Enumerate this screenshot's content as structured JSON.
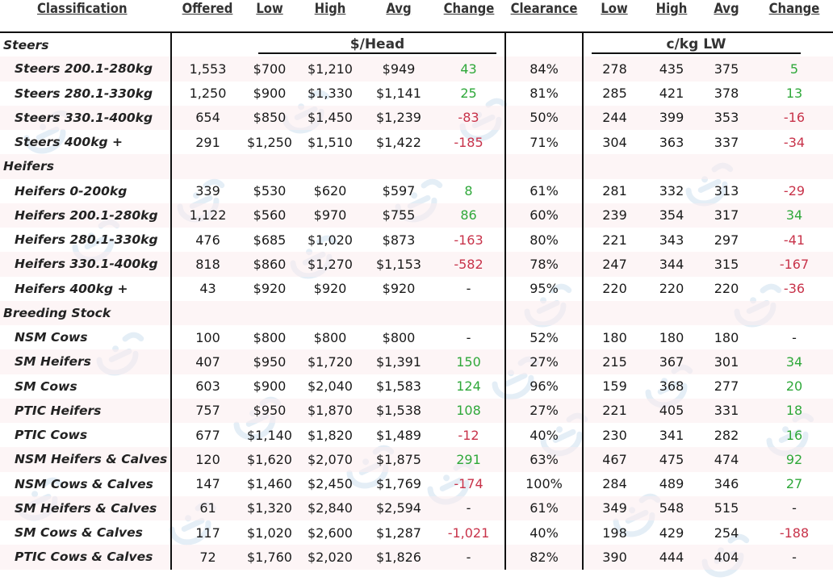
{
  "columns": [
    "Classification",
    "Offered",
    "Low",
    "High",
    "Avg",
    "Change",
    "Clearance",
    "Low",
    "High",
    "Avg",
    "Change"
  ],
  "units": {
    "head": "$/Head",
    "kg": "c/kg LW"
  },
  "rows": [
    {
      "type": "section",
      "label": "Steers"
    },
    {
      "type": "data",
      "label": "Steers 200.1-280kg",
      "offered": "1,553",
      "low": "$700",
      "high": "$1,210",
      "avg": "$949",
      "change": "43",
      "change_sign": "pos",
      "clearance": "84%",
      "kg_low": "278",
      "kg_high": "435",
      "kg_avg": "375",
      "kg_change": "5",
      "kg_change_sign": "pos"
    },
    {
      "type": "data",
      "label": "Steers 280.1-330kg",
      "offered": "1,250",
      "low": "$900",
      "high": "$1,330",
      "avg": "$1,141",
      "change": "25",
      "change_sign": "pos",
      "clearance": "81%",
      "kg_low": "285",
      "kg_high": "421",
      "kg_avg": "378",
      "kg_change": "13",
      "kg_change_sign": "pos"
    },
    {
      "type": "data",
      "label": "Steers 330.1-400kg",
      "offered": "654",
      "low": "$850",
      "high": "$1,450",
      "avg": "$1,239",
      "change": "-83",
      "change_sign": "neg",
      "clearance": "50%",
      "kg_low": "244",
      "kg_high": "399",
      "kg_avg": "353",
      "kg_change": "-16",
      "kg_change_sign": "neg"
    },
    {
      "type": "data",
      "label": "Steers 400kg +",
      "offered": "291",
      "low": "$1,250",
      "high": "$1,510",
      "avg": "$1,422",
      "change": "-185",
      "change_sign": "neg",
      "clearance": "71%",
      "kg_low": "304",
      "kg_high": "363",
      "kg_avg": "337",
      "kg_change": "-34",
      "kg_change_sign": "neg"
    },
    {
      "type": "section",
      "label": "Heifers"
    },
    {
      "type": "data",
      "label": "Heifers 0-200kg",
      "offered": "339",
      "low": "$530",
      "high": "$620",
      "avg": "$597",
      "change": "8",
      "change_sign": "pos",
      "clearance": "61%",
      "kg_low": "281",
      "kg_high": "332",
      "kg_avg": "313",
      "kg_change": "-29",
      "kg_change_sign": "neg"
    },
    {
      "type": "data",
      "label": "Heifers 200.1-280kg",
      "offered": "1,122",
      "low": "$560",
      "high": "$970",
      "avg": "$755",
      "change": "86",
      "change_sign": "pos",
      "clearance": "60%",
      "kg_low": "239",
      "kg_high": "354",
      "kg_avg": "317",
      "kg_change": "34",
      "kg_change_sign": "pos"
    },
    {
      "type": "data",
      "label": "Heifers 280.1-330kg",
      "offered": "476",
      "low": "$685",
      "high": "$1,020",
      "avg": "$873",
      "change": "-163",
      "change_sign": "neg",
      "clearance": "80%",
      "kg_low": "221",
      "kg_high": "343",
      "kg_avg": "297",
      "kg_change": "-41",
      "kg_change_sign": "neg"
    },
    {
      "type": "data",
      "label": "Heifers 330.1-400kg",
      "offered": "818",
      "low": "$860",
      "high": "$1,270",
      "avg": "$1,153",
      "change": "-582",
      "change_sign": "neg",
      "clearance": "78%",
      "kg_low": "247",
      "kg_high": "344",
      "kg_avg": "315",
      "kg_change": "-167",
      "kg_change_sign": "neg"
    },
    {
      "type": "data",
      "label": "Heifers 400kg +",
      "offered": "43",
      "low": "$920",
      "high": "$920",
      "avg": "$920",
      "change": "-",
      "change_sign": "none",
      "clearance": "95%",
      "kg_low": "220",
      "kg_high": "220",
      "kg_avg": "220",
      "kg_change": "-36",
      "kg_change_sign": "neg"
    },
    {
      "type": "section",
      "label": "Breeding Stock"
    },
    {
      "type": "data",
      "label": "NSM Cows",
      "offered": "100",
      "low": "$800",
      "high": "$800",
      "avg": "$800",
      "change": "-",
      "change_sign": "none",
      "clearance": "52%",
      "kg_low": "180",
      "kg_high": "180",
      "kg_avg": "180",
      "kg_change": "-",
      "kg_change_sign": "none"
    },
    {
      "type": "data",
      "label": "SM Heifers",
      "offered": "407",
      "low": "$950",
      "high": "$1,720",
      "avg": "$1,391",
      "change": "150",
      "change_sign": "pos",
      "clearance": "27%",
      "kg_low": "215",
      "kg_high": "367",
      "kg_avg": "301",
      "kg_change": "34",
      "kg_change_sign": "pos"
    },
    {
      "type": "data",
      "label": "SM Cows",
      "offered": "603",
      "low": "$900",
      "high": "$2,040",
      "avg": "$1,583",
      "change": "124",
      "change_sign": "pos",
      "clearance": "96%",
      "kg_low": "159",
      "kg_high": "368",
      "kg_avg": "277",
      "kg_change": "20",
      "kg_change_sign": "pos"
    },
    {
      "type": "data",
      "label": "PTIC Heifers",
      "offered": "757",
      "low": "$950",
      "high": "$1,870",
      "avg": "$1,538",
      "change": "108",
      "change_sign": "pos",
      "clearance": "27%",
      "kg_low": "221",
      "kg_high": "405",
      "kg_avg": "331",
      "kg_change": "18",
      "kg_change_sign": "pos"
    },
    {
      "type": "data",
      "label": "PTIC Cows",
      "offered": "677",
      "low": "$1,140",
      "high": "$1,820",
      "avg": "$1,489",
      "change": "-12",
      "change_sign": "neg",
      "clearance": "40%",
      "kg_low": "230",
      "kg_high": "341",
      "kg_avg": "282",
      "kg_change": "16",
      "kg_change_sign": "pos"
    },
    {
      "type": "data",
      "label": "NSM Heifers & Calves",
      "offered": "120",
      "low": "$1,620",
      "high": "$2,070",
      "avg": "$1,875",
      "change": "291",
      "change_sign": "pos",
      "clearance": "63%",
      "kg_low": "467",
      "kg_high": "475",
      "kg_avg": "474",
      "kg_change": "92",
      "kg_change_sign": "pos"
    },
    {
      "type": "data",
      "label": "NSM Cows & Calves",
      "offered": "147",
      "low": "$1,460",
      "high": "$2,450",
      "avg": "$1,769",
      "change": "-174",
      "change_sign": "neg",
      "clearance": "100%",
      "kg_low": "284",
      "kg_high": "489",
      "kg_avg": "346",
      "kg_change": "27",
      "kg_change_sign": "pos"
    },
    {
      "type": "data",
      "label": "SM Heifers & Calves",
      "offered": "61",
      "low": "$1,320",
      "high": "$2,840",
      "avg": "$2,594",
      "change": "-",
      "change_sign": "none",
      "clearance": "61%",
      "kg_low": "349",
      "kg_high": "548",
      "kg_avg": "515",
      "kg_change": "-",
      "kg_change_sign": "none"
    },
    {
      "type": "data",
      "label": "SM Cows & Calves",
      "offered": "117",
      "low": "$1,020",
      "high": "$2,600",
      "avg": "$1,287",
      "change": "-1,021",
      "change_sign": "neg",
      "clearance": "40%",
      "kg_low": "198",
      "kg_high": "429",
      "kg_avg": "254",
      "kg_change": "-188",
      "kg_change_sign": "neg"
    },
    {
      "type": "data",
      "label": "PTIC Cows & Calves",
      "offered": "72",
      "low": "$1,760",
      "high": "$2,020",
      "avg": "$1,826",
      "change": "-",
      "change_sign": "none",
      "clearance": "82%",
      "kg_low": "390",
      "kg_high": "444",
      "kg_avg": "404",
      "kg_change": "-",
      "kg_change_sign": "none"
    }
  ],
  "icons": {
    "watermark": "cow-logo-icon"
  },
  "colors": {
    "positive": "#2fa83a",
    "negative": "#c8334a",
    "row_tint": "#fcecee",
    "watermark": "#a9c8e4"
  }
}
